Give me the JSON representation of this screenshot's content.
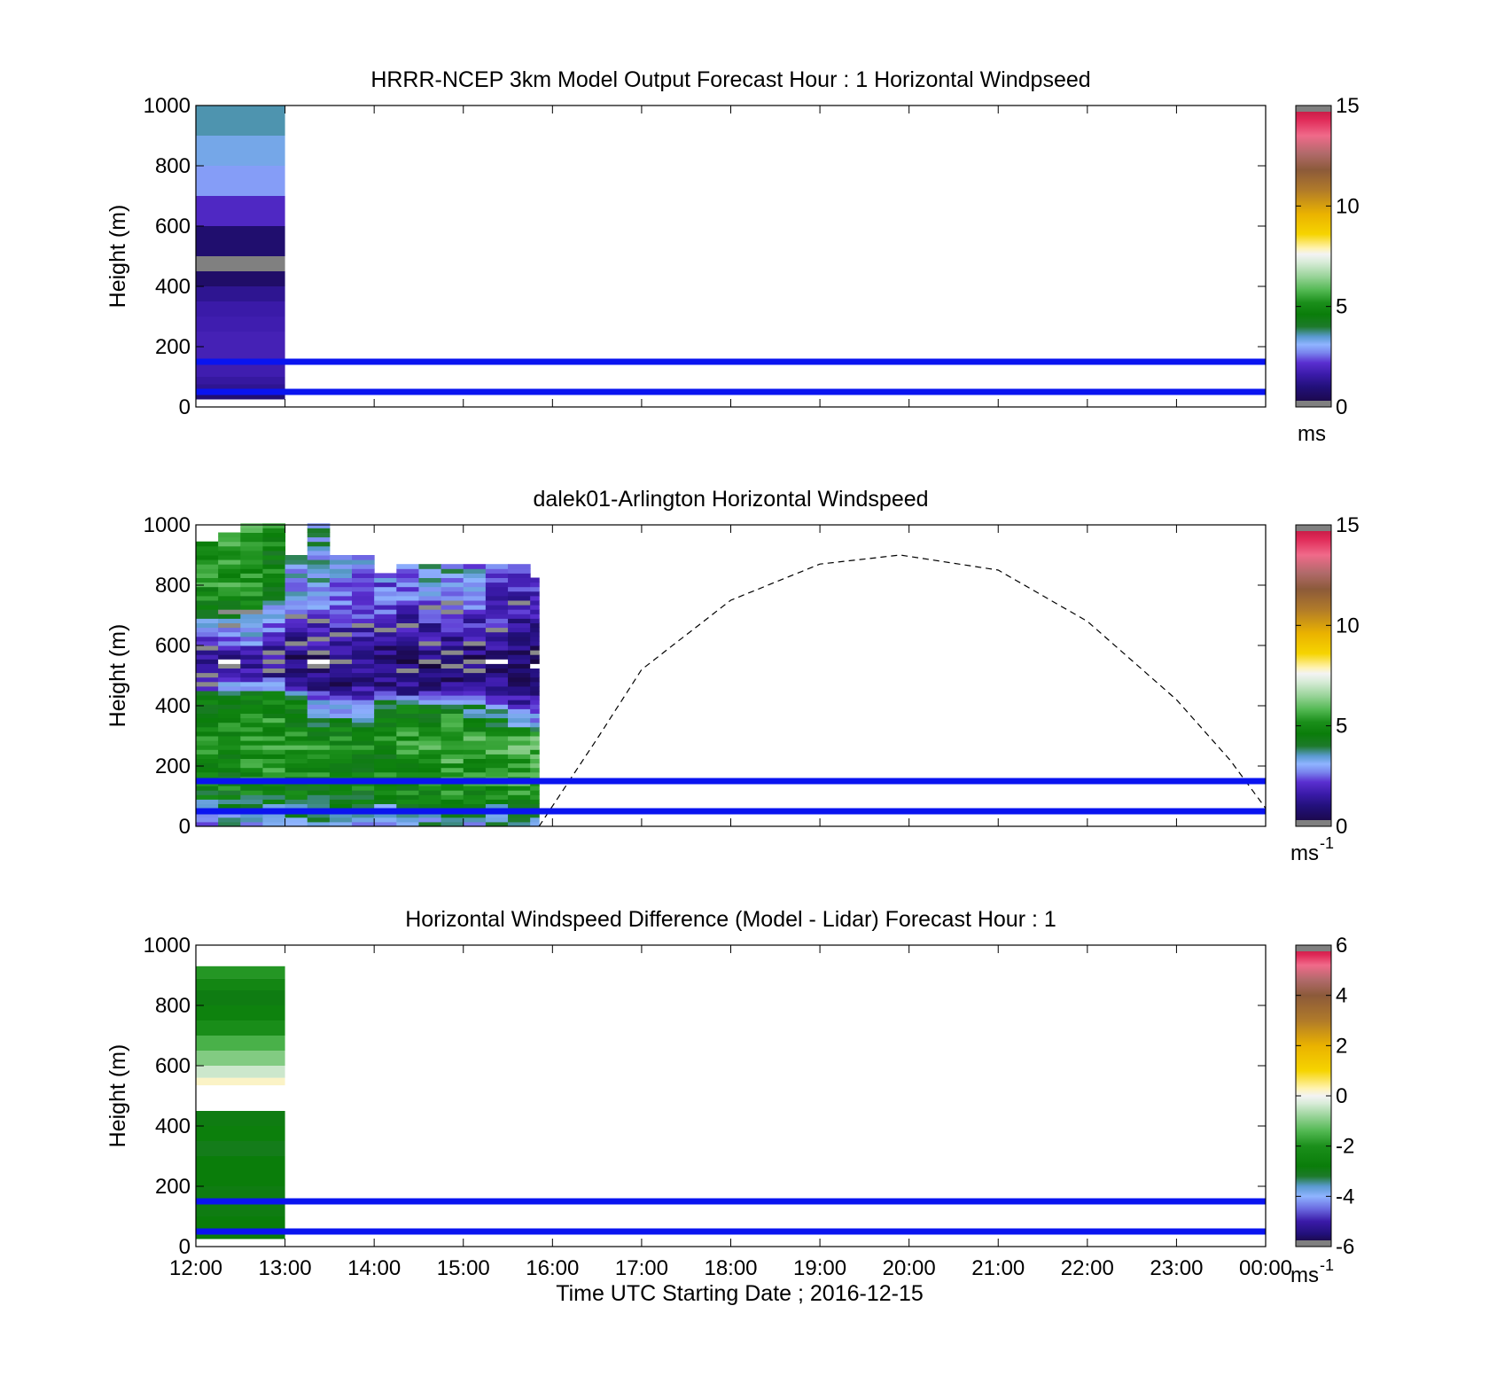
{
  "colors": {
    "ref_lines": "#0a14f0",
    "axis": "#000000",
    "background": "#ffffff"
  },
  "chart_data": [
    {
      "type": "heatmap",
      "title": "HRRR-NCEP 3km Model Output   Forecast Hour : 1 Horizontal Windpseed",
      "ylabel": "Height (m)",
      "yticks": [
        "0",
        "200",
        "400",
        "600",
        "800",
        "1000"
      ],
      "ylim": [
        0,
        1000
      ],
      "xlim_hours": [
        12,
        24
      ],
      "xticks": [
        "12:00",
        "13:00",
        "14:00",
        "15:00",
        "16:00",
        "17:00",
        "18:00",
        "19:00",
        "20:00",
        "21:00",
        "22:00",
        "23:00",
        "00:00"
      ],
      "show_xtick_labels": false,
      "colorbar": {
        "ticks": [
          "0",
          "5",
          "10",
          "15"
        ],
        "range": [
          0,
          15
        ],
        "unit": "ms",
        "unit_sup": "",
        "scale": "speed"
      },
      "reference_lines_m": [
        50,
        150
      ],
      "columns": [
        {
          "t0": 12,
          "t1": 13,
          "cells": [
            {
              "z0": 25,
              "z1": 50,
              "v": 0.9
            },
            {
              "z0": 50,
              "z1": 75,
              "v": 1.3
            },
            {
              "z0": 75,
              "z1": 100,
              "v": 1.5
            },
            {
              "z0": 100,
              "z1": 150,
              "v": 1.7
            },
            {
              "z0": 150,
              "z1": 200,
              "v": 1.8
            },
            {
              "z0": 200,
              "z1": 250,
              "v": 1.8
            },
            {
              "z0": 250,
              "z1": 300,
              "v": 1.7
            },
            {
              "z0": 300,
              "z1": 350,
              "v": 1.6
            },
            {
              "z0": 350,
              "z1": 400,
              "v": 1.3
            },
            {
              "z0": 400,
              "z1": 450,
              "v": 0.7
            },
            {
              "z0": 450,
              "z1": 500,
              "v": -1
            },
            {
              "z0": 500,
              "z1": 600,
              "v": 0.8
            },
            {
              "z0": 600,
              "z1": 700,
              "v": 2.0
            },
            {
              "z0": 700,
              "z1": 800,
              "v": 2.9
            },
            {
              "z0": 800,
              "z1": 900,
              "v": 3.3
            },
            {
              "z0": 900,
              "z1": 1000,
              "v": 3.6
            }
          ]
        }
      ]
    },
    {
      "type": "heatmap",
      "title": "dalek01-Arlington  Horizontal Windspeed",
      "ylabel": "Height (m)",
      "yticks": [
        "0",
        "200",
        "400",
        "600",
        "800",
        "1000"
      ],
      "ylim": [
        0,
        1000
      ],
      "xlim_hours": [
        12,
        24
      ],
      "xticks": [
        "12:00",
        "13:00",
        "14:00",
        "15:00",
        "16:00",
        "17:00",
        "18:00",
        "19:00",
        "20:00",
        "21:00",
        "22:00",
        "23:00",
        "00:00"
      ],
      "show_xtick_labels": false,
      "colorbar": {
        "ticks": [
          "0",
          "5",
          "10",
          "15"
        ],
        "range": [
          0,
          15
        ],
        "unit": "ms",
        "unit_sup": "-1",
        "scale": "speed"
      },
      "reference_lines_m": [
        50,
        150
      ],
      "lidar_columns": [
        {
          "t0": 12.0,
          "t1": 12.25,
          "top": 945,
          "profile": [
            [
              0,
              3.0
            ],
            [
              120,
              4.6
            ],
            [
              300,
              5.0
            ],
            [
              430,
              4.2
            ],
            [
              470,
              1.5
            ],
            [
              560,
              1.3
            ],
            [
              640,
              2.6
            ],
            [
              760,
              5.2
            ],
            [
              945,
              5.4
            ]
          ]
        },
        {
          "t0": 12.25,
          "t1": 12.5,
          "top": 975,
          "profile": [
            [
              0,
              3.1
            ],
            [
              120,
              4.7
            ],
            [
              300,
              5.1
            ],
            [
              430,
              4.4
            ],
            [
              490,
              1.7
            ],
            [
              560,
              1.5
            ],
            [
              640,
              3.0
            ],
            [
              760,
              5.3
            ],
            [
              975,
              5.5
            ]
          ]
        },
        {
          "t0": 12.5,
          "t1": 12.75,
          "top": 1000,
          "profile": [
            [
              0,
              3.2
            ],
            [
              120,
              4.8
            ],
            [
              300,
              5.2
            ],
            [
              430,
              4.5
            ],
            [
              500,
              1.8
            ],
            [
              580,
              1.8
            ],
            [
              660,
              3.4
            ],
            [
              780,
              5.1
            ],
            [
              1000,
              5.4
            ]
          ]
        },
        {
          "t0": 12.75,
          "t1": 13.0,
          "top": 1000,
          "profile": [
            [
              0,
              3.0
            ],
            [
              120,
              4.9
            ],
            [
              300,
              5.3
            ],
            [
              430,
              4.8
            ],
            [
              500,
              1.3
            ],
            [
              580,
              1.4
            ],
            [
              680,
              2.6
            ],
            [
              780,
              4.6
            ],
            [
              1000,
              5.0
            ]
          ]
        },
        {
          "t0": 13.0,
          "t1": 13.25,
          "top": 900,
          "profile": [
            [
              0,
              3.2
            ],
            [
              120,
              4.8
            ],
            [
              300,
              5.2
            ],
            [
              420,
              4.4
            ],
            [
              470,
              1.2
            ],
            [
              560,
              0.9
            ],
            [
              650,
              1.7
            ],
            [
              780,
              3.1
            ],
            [
              900,
              3.4
            ]
          ]
        },
        {
          "t0": 13.25,
          "t1": 13.5,
          "top": 1000,
          "profile": [
            [
              0,
              3.3
            ],
            [
              120,
              4.7
            ],
            [
              300,
              5.1
            ],
            [
              410,
              3.2
            ],
            [
              470,
              1.0
            ],
            [
              560,
              0.8
            ],
            [
              650,
              1.8
            ],
            [
              780,
              3.2
            ],
            [
              1000,
              3.5
            ]
          ]
        },
        {
          "t0": 13.5,
          "t1": 13.75,
          "top": 900,
          "profile": [
            [
              0,
              2.9
            ],
            [
              120,
              4.6
            ],
            [
              300,
              5.0
            ],
            [
              400,
              3.0
            ],
            [
              460,
              1.1
            ],
            [
              560,
              0.9
            ],
            [
              660,
              1.9
            ],
            [
              780,
              2.8
            ],
            [
              900,
              3.0
            ]
          ]
        },
        {
          "t0": 13.75,
          "t1": 14.0,
          "top": 900,
          "profile": [
            [
              0,
              3.0
            ],
            [
              120,
              4.8
            ],
            [
              300,
              5.1
            ],
            [
              400,
              3.1
            ],
            [
              460,
              1.3
            ],
            [
              560,
              0.9
            ],
            [
              660,
              1.8
            ],
            [
              780,
              2.6
            ],
            [
              900,
              2.8
            ]
          ]
        },
        {
          "t0": 14.0,
          "t1": 14.25,
          "top": 830,
          "profile": [
            [
              0,
              2.8
            ],
            [
              120,
              4.7
            ],
            [
              300,
              5.0
            ],
            [
              400,
              4.4
            ],
            [
              460,
              1.2
            ],
            [
              560,
              0.8
            ],
            [
              660,
              1.7
            ],
            [
              780,
              2.5
            ],
            [
              830,
              2.6
            ]
          ]
        },
        {
          "t0": 14.25,
          "t1": 14.5,
          "top": 870,
          "profile": [
            [
              0,
              3.0
            ],
            [
              120,
              4.9
            ],
            [
              300,
              5.3
            ],
            [
              400,
              4.6
            ],
            [
              450,
              1.1
            ],
            [
              560,
              0.8
            ],
            [
              660,
              1.5
            ],
            [
              780,
              2.5
            ],
            [
              870,
              2.8
            ]
          ]
        },
        {
          "t0": 14.5,
          "t1": 14.75,
          "top": 870,
          "profile": [
            [
              0,
              3.2
            ],
            [
              120,
              5.0
            ],
            [
              300,
              5.5
            ],
            [
              400,
              4.5
            ],
            [
              450,
              1.0
            ],
            [
              560,
              0.8
            ],
            [
              660,
              1.6
            ],
            [
              780,
              3.0
            ],
            [
              870,
              3.3
            ]
          ]
        },
        {
          "t0": 14.75,
          "t1": 15.0,
          "top": 870,
          "profile": [
            [
              0,
              3.1
            ],
            [
              120,
              5.2
            ],
            [
              300,
              5.6
            ],
            [
              400,
              4.6
            ],
            [
              450,
              1.1
            ],
            [
              560,
              0.9
            ],
            [
              660,
              1.7
            ],
            [
              780,
              3.1
            ],
            [
              870,
              3.4
            ]
          ]
        },
        {
          "t0": 15.0,
          "t1": 15.25,
          "top": 870,
          "profile": [
            [
              0,
              3.0
            ],
            [
              120,
              5.1
            ],
            [
              300,
              5.5
            ],
            [
              400,
              3.6
            ],
            [
              450,
              1.2
            ],
            [
              560,
              0.9
            ],
            [
              660,
              1.6
            ],
            [
              780,
              2.8
            ],
            [
              870,
              3.0
            ]
          ]
        },
        {
          "t0": 15.25,
          "t1": 15.5,
          "top": 870,
          "profile": [
            [
              0,
              3.1
            ],
            [
              120,
              5.2
            ],
            [
              300,
              5.6
            ],
            [
              380,
              3.4
            ],
            [
              450,
              1.2
            ],
            [
              560,
              0.9
            ],
            [
              660,
              1.6
            ],
            [
              780,
              2.2
            ],
            [
              870,
              2.5
            ]
          ]
        },
        {
          "t0": 15.5,
          "t1": 15.75,
          "top": 870,
          "profile": [
            [
              0,
              3.0
            ],
            [
              120,
              5.3
            ],
            [
              300,
              5.7
            ],
            [
              360,
              2.8
            ],
            [
              450,
              1.1
            ],
            [
              560,
              0.8
            ],
            [
              660,
              1.3
            ],
            [
              780,
              1.9
            ],
            [
              870,
              2.1
            ]
          ]
        },
        {
          "t0": 15.75,
          "t1": 15.85,
          "top": 820,
          "profile": [
            [
              0,
              3.2
            ],
            [
              120,
              5.2
            ],
            [
              300,
              5.6
            ],
            [
              350,
              3.0
            ],
            [
              450,
              1.3
            ],
            [
              560,
              0.8
            ],
            [
              660,
              1.1
            ],
            [
              760,
              1.8
            ],
            [
              820,
              2.0
            ]
          ]
        }
      ],
      "curve": {
        "style": "dashed",
        "points": [
          [
            15.85,
            0
          ],
          [
            16.5,
            290
          ],
          [
            17.0,
            520
          ],
          [
            18.0,
            750
          ],
          [
            19.0,
            870
          ],
          [
            19.9,
            900
          ],
          [
            21.0,
            850
          ],
          [
            22.0,
            680
          ],
          [
            23.0,
            420
          ],
          [
            23.6,
            220
          ],
          [
            24.0,
            60
          ]
        ]
      }
    },
    {
      "type": "heatmap",
      "title": "Horizontal Windspeed Difference (Model - Lidar) Forecast Hour : 1",
      "ylabel": "Height (m)",
      "xlabel": "Time UTC  Starting Date ; 2016-12-15",
      "yticks": [
        "0",
        "200",
        "400",
        "600",
        "800",
        "1000"
      ],
      "ylim": [
        0,
        1000
      ],
      "xlim_hours": [
        12,
        24
      ],
      "xticks": [
        "12:00",
        "13:00",
        "14:00",
        "15:00",
        "16:00",
        "17:00",
        "18:00",
        "19:00",
        "20:00",
        "21:00",
        "22:00",
        "23:00",
        "00:00"
      ],
      "show_xtick_labels": true,
      "colorbar": {
        "ticks": [
          "-6",
          "-4",
          "-2",
          "0",
          "2",
          "4",
          "6"
        ],
        "range": [
          -6,
          6
        ],
        "unit": "ms",
        "unit_sup": "-1",
        "scale": "diff"
      },
      "reference_lines_m": [
        50,
        150
      ],
      "columns": [
        {
          "t0": 12,
          "t1": 13,
          "cells": [
            {
              "z0": 25,
              "z1": 100,
              "v": -2.8
            },
            {
              "z0": 100,
              "z1": 200,
              "v": -2.9
            },
            {
              "z0": 200,
              "z1": 300,
              "v": -2.8
            },
            {
              "z0": 300,
              "z1": 350,
              "v": -3.0
            },
            {
              "z0": 350,
              "z1": 400,
              "v": -2.7
            },
            {
              "z0": 400,
              "z1": 450,
              "v": -2.9
            },
            {
              "z0": 535,
              "z1": 560,
              "v": 0.2
            },
            {
              "z0": 560,
              "z1": 600,
              "v": -0.4
            },
            {
              "z0": 600,
              "z1": 650,
              "v": -1.0
            },
            {
              "z0": 650,
              "z1": 700,
              "v": -1.5
            },
            {
              "z0": 700,
              "z1": 750,
              "v": -2.1
            },
            {
              "z0": 750,
              "z1": 800,
              "v": -2.6
            },
            {
              "z0": 800,
              "z1": 850,
              "v": -2.9
            },
            {
              "z0": 850,
              "z1": 890,
              "v": -2.4
            },
            {
              "z0": 890,
              "z1": 930,
              "v": -1.9
            }
          ]
        }
      ]
    }
  ]
}
